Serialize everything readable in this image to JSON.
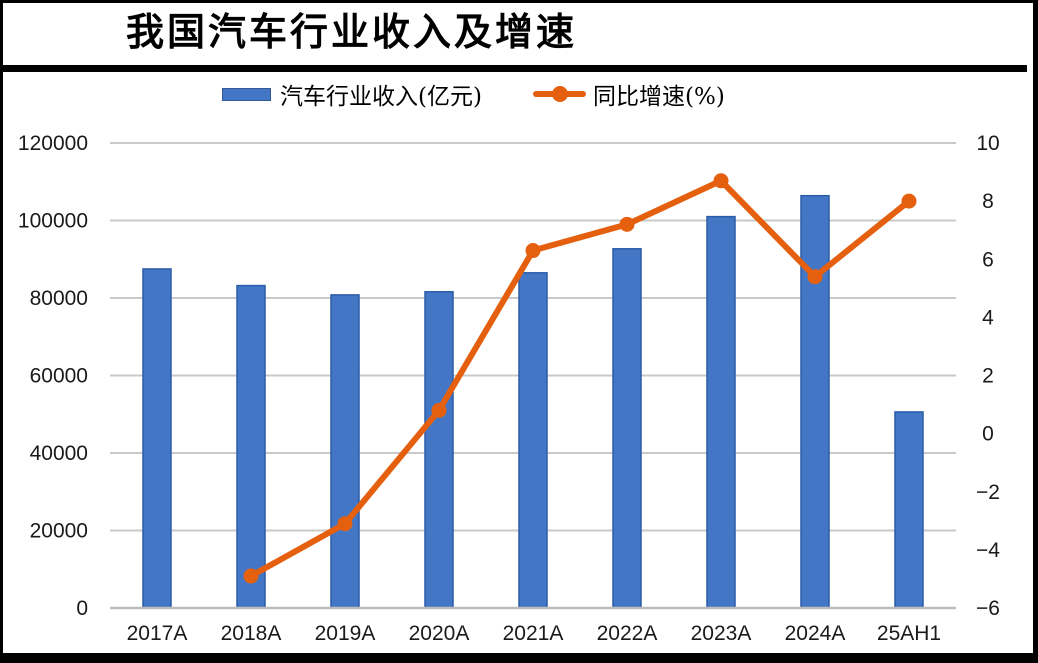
{
  "chart_data": {
    "type": "combo",
    "title": "我国汽车行业收入及增速",
    "categories": [
      "2017A",
      "2018A",
      "2019A",
      "2020A",
      "2021A",
      "2022A",
      "2023A",
      "2024A",
      "25AH1"
    ],
    "series": [
      {
        "name": "汽车行业收入(亿元)",
        "type": "bar",
        "axis": "left",
        "color": "#4377C6",
        "border_color": "#2B5CA9",
        "values": [
          87500,
          83200,
          80800,
          81600,
          86500,
          92700,
          101000,
          106400,
          50600
        ]
      },
      {
        "name": "同比增速(%)",
        "type": "line",
        "axis": "right",
        "color": "#E5600E",
        "values": [
          null,
          -4.9,
          -3.1,
          0.8,
          6.3,
          7.2,
          8.7,
          5.4,
          8.0
        ]
      }
    ],
    "left_axis": {
      "min": 0,
      "max": 120000,
      "step": 20000,
      "values": [
        0,
        20000,
        40000,
        60000,
        80000,
        100000,
        120000
      ],
      "labels": [
        "0",
        "20000",
        "40000",
        "60000",
        "80000",
        "100000",
        "120000"
      ]
    },
    "right_axis": {
      "min": -6,
      "max": 10,
      "step": 2,
      "values": [
        -6,
        -4,
        -2,
        0,
        2,
        4,
        6,
        8,
        10
      ],
      "labels": [
        "−6",
        "−4",
        "−2",
        "0",
        "2",
        "4",
        "6",
        "8",
        "10"
      ]
    },
    "grid": "horizontal gridlines on",
    "legend_position": "top",
    "colors": {
      "gridline": "#C9C9C9",
      "axis_line": "#BDBDBD",
      "text": "#1A1A1A",
      "title_rule": "#000000"
    }
  }
}
